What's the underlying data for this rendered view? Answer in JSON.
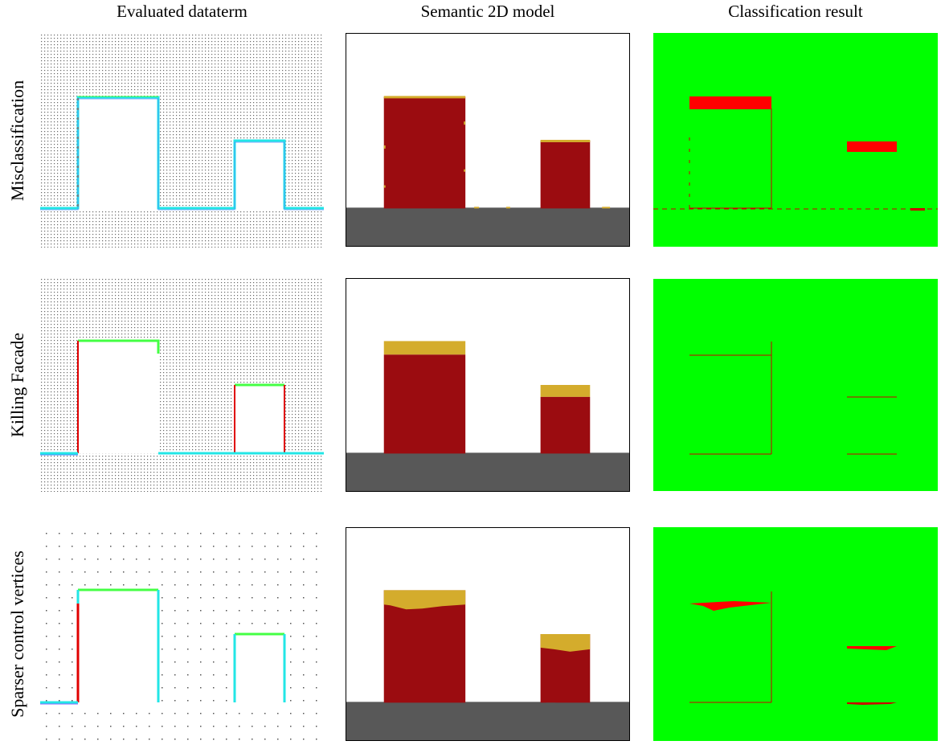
{
  "columns": [
    {
      "title": "Evaluated dataterm"
    },
    {
      "title": "Semantic 2D model"
    },
    {
      "title": "Classification result"
    }
  ],
  "rows": [
    {
      "label": "Misclassification",
      "grid": "dense"
    },
    {
      "label": "Killing  Facade",
      "grid": "dense"
    },
    {
      "label": "Sparser control vertices",
      "grid": "sparse"
    }
  ],
  "colors": {
    "building": "#9b0c10",
    "roof": "#d4ac2c",
    "ground": "#585858",
    "background": "#ffffff",
    "correct": "#00ff00",
    "error": "#ff0000",
    "contour_green": "#44ff44",
    "contour_cyan": "#22e6e6",
    "contour_red": "#e00000",
    "contour_blue": "#4488ff",
    "grid_dot": "#666666"
  }
}
